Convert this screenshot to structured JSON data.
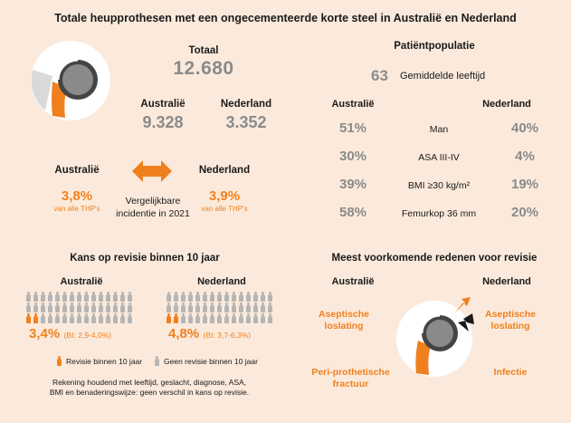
{
  "title": "Totale heupprothesen met een ongecementeerde korte steel in Australië en Nederland",
  "totals": {
    "total_label": "Totaal",
    "total_value": "12.680",
    "au_label": "Australië",
    "au_value": "9.328",
    "nl_label": "Nederland",
    "nl_value": "3.352"
  },
  "incidence": {
    "au_label": "Australië",
    "nl_label": "Nederland",
    "au_pct": "3,8%",
    "nl_pct": "3,9%",
    "au_sub": "van alle THP's",
    "nl_sub": "van alle THP's",
    "center_line1": "Vergelijkbare",
    "center_line2": "incidentie in 2021"
  },
  "patients": {
    "title": "Patiëntpopulatie",
    "mean_age_value": "63",
    "mean_age_label": "Gemiddelde leeftijd",
    "au_label": "Australië",
    "nl_label": "Nederland",
    "rows": [
      {
        "au": "51%",
        "label": "Man",
        "nl": "40%"
      },
      {
        "au": "30%",
        "label": "ASA III-IV",
        "nl": "4%"
      },
      {
        "au": "39%",
        "label": "BMI ≥30 kg/m²",
        "nl": "19%"
      },
      {
        "au": "58%",
        "label": "Femurkop 36 mm",
        "nl": "20%"
      }
    ]
  },
  "revision": {
    "title": "Kans op revisie binnen 10 jaar",
    "au_label": "Australië",
    "nl_label": "Nederland",
    "au_pct": "3,4%",
    "au_ci": "(BI: 2,9-4,0%)",
    "nl_pct": "4,8%",
    "nl_ci": "(BI: 3,7-6,3%)",
    "au_revised_fraction": 0.034,
    "nl_revised_fraction": 0.048,
    "legend_revised": "Revisie binnen 10 jaar",
    "legend_not_revised": "Geen revisie binnen 10 jaar",
    "note_line1": "Rekening houdend met leeftijd, geslacht, diagnose, ASA,",
    "note_line2": "BMI en benaderingswijze: geen verschil in kans op revisie."
  },
  "reasons": {
    "title": "Meest voorkomende redenen voor revisie",
    "au_label": "Australië",
    "nl_label": "Nederland",
    "au_reason1_line1": "Aseptische",
    "au_reason1_line2": "loslating",
    "au_reason2_line1": "Peri-prothetische",
    "au_reason2_line2": "fractuur",
    "nl_reason1_line1": "Aseptische",
    "nl_reason1_line2": "loslating",
    "nl_reason2": "Infectie"
  },
  "colors": {
    "background": "#fbeadc",
    "accent": "#f0801e",
    "grey_value": "#8a8a8a",
    "figure_grey": "#b5b5b5"
  },
  "icons": [
    "hip-prosthesis-icon",
    "double-arrow-icon",
    "person-icon"
  ]
}
